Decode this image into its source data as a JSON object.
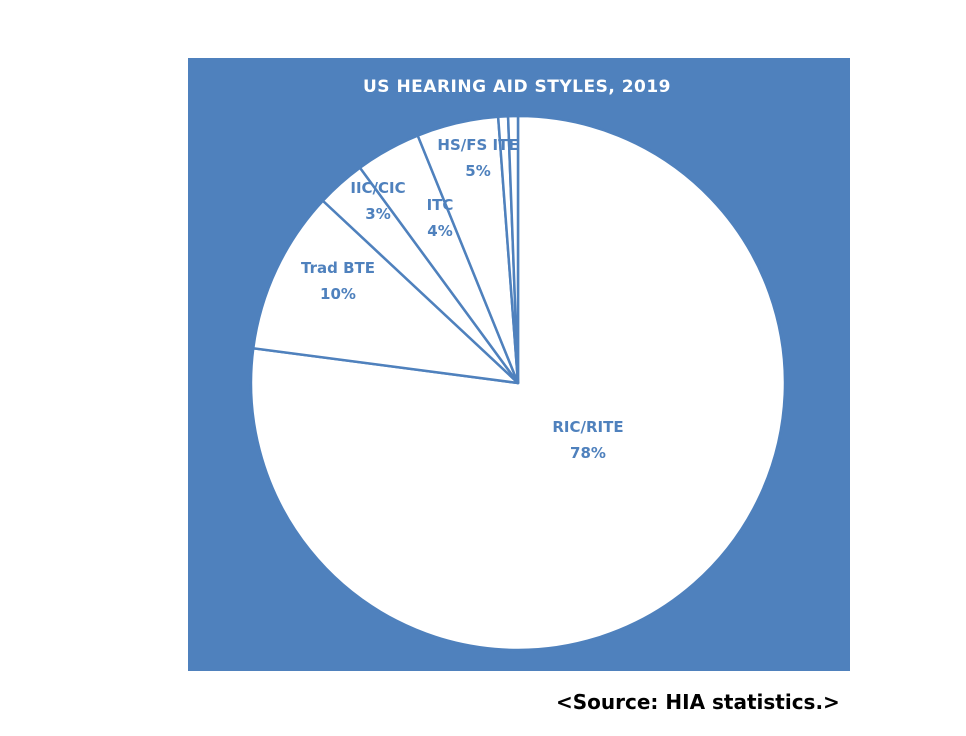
{
  "chart_data": {
    "type": "pie",
    "title": "US HEARING AID STYLES, 2019",
    "start_angle_deg": 0,
    "slices": [
      {
        "name": "RIC/RITE",
        "value": 78,
        "label": "78%"
      },
      {
        "name": "Trad BTE",
        "value": 10,
        "label": "10%"
      },
      {
        "name": "IIC/CIC",
        "value": 3,
        "label": "3%"
      },
      {
        "name": "ITC",
        "value": 4,
        "label": "4%"
      },
      {
        "name": "HS/FS ITE",
        "value": 5,
        "label": "5%"
      },
      {
        "name": "",
        "value": 0.6,
        "label": ""
      },
      {
        "name": "",
        "value": 0.6,
        "label": ""
      }
    ],
    "legend": "none",
    "grid": false
  },
  "colors": {
    "background": "#4f81bd",
    "slice_fill": "#ffffff",
    "slice_border": "#4f81bd",
    "label_color": "#4f81bd",
    "title_color": "#ffffff"
  },
  "source": "<Source: HIA statistics.>"
}
